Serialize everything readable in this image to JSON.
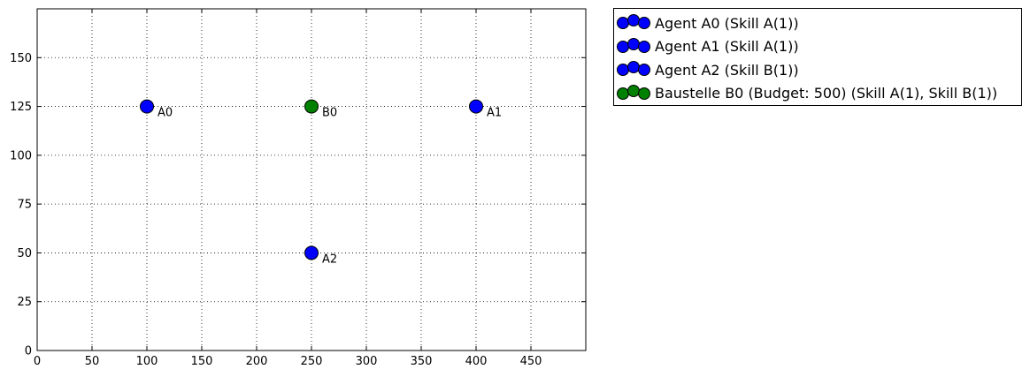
{
  "chart_data": {
    "type": "scatter",
    "title": "",
    "xlabel": "",
    "ylabel": "",
    "xlim": [
      0,
      500
    ],
    "ylim": [
      0,
      175
    ],
    "xticks": [
      0,
      50,
      100,
      150,
      200,
      250,
      300,
      350,
      400,
      450
    ],
    "yticks": [
      0,
      25,
      50,
      75,
      100,
      125,
      150
    ],
    "grid": true,
    "legend_position": "outside-top-right",
    "series": [
      {
        "name": "Agent A0 (Skill A(1))",
        "color": "#0000ff",
        "points": [
          {
            "x": 100,
            "y": 125,
            "label": "A0"
          }
        ]
      },
      {
        "name": "Agent A1 (Skill A(1))",
        "color": "#0000ff",
        "points": [
          {
            "x": 400,
            "y": 125,
            "label": "A1"
          }
        ]
      },
      {
        "name": "Agent A2 (Skill B(1))",
        "color": "#0000ff",
        "points": [
          {
            "x": 250,
            "y": 50,
            "label": "A2"
          }
        ]
      },
      {
        "name": "Baustelle B0 (Budget: 500) (Skill A(1), Skill B(1))",
        "color": "#008000",
        "points": [
          {
            "x": 250,
            "y": 125,
            "label": "B0"
          }
        ]
      }
    ]
  }
}
